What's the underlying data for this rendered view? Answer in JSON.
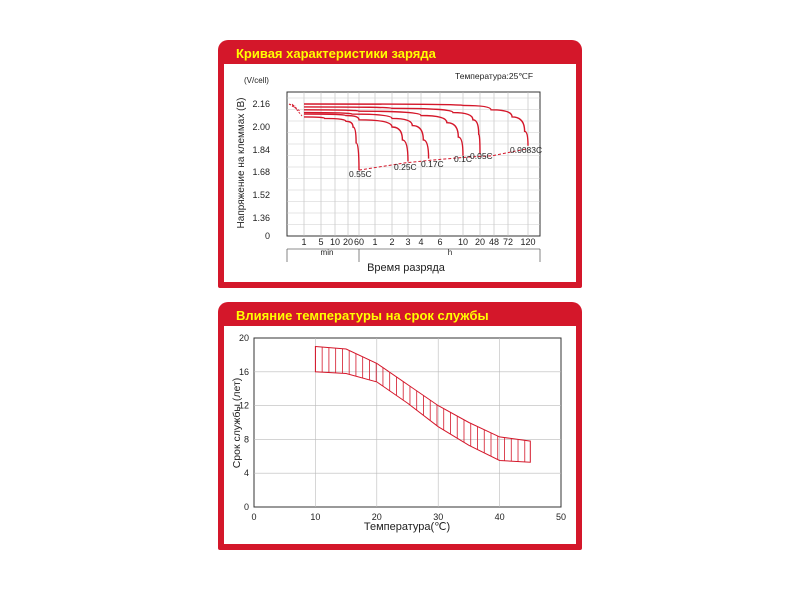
{
  "chart_data": [
    {
      "type": "line",
      "title": "Кривая характеристики заряда",
      "annotation": "Температура:25℃F",
      "ylabel": "Напряжение на клеммах (В)",
      "yunit": "(V/cell)",
      "xlabel": "Время разряда",
      "yticks": [
        "2.16",
        "2.00",
        "1.84",
        "1.68",
        "1.52",
        "1.36",
        "0"
      ],
      "min_ticks": [
        "1",
        "5",
        "10",
        "20",
        "60"
      ],
      "hour_ticks": [
        "1",
        "2",
        "3",
        "4",
        "6",
        "10",
        "20",
        "48",
        "72",
        "120"
      ],
      "min_label": "min",
      "hour_label": "h",
      "cutoff_labels": [
        "0.55C",
        "0.25C",
        "0.17C",
        "0.1C",
        "0.05C",
        "0.0083C"
      ],
      "series": [
        {
          "name": "0.55C",
          "x_hours": [
            0.0167,
            0.1,
            0.3,
            0.55,
            0.75,
            1.0
          ],
          "y": [
            2.07,
            2.06,
            2.04,
            2.0,
            1.89,
            1.7
          ]
        },
        {
          "name": "0.25C",
          "x_hours": [
            0.0167,
            0.3,
            1.0,
            2.0,
            2.6,
            3.0
          ],
          "y": [
            2.09,
            2.08,
            2.05,
            2.0,
            1.91,
            1.76
          ]
        },
        {
          "name": "0.17C",
          "x_hours": [
            0.0167,
            0.5,
            2.0,
            3.3,
            4.2,
            4.7
          ],
          "y": [
            2.1,
            2.09,
            2.06,
            2.01,
            1.91,
            1.78
          ]
        },
        {
          "name": "0.1C",
          "x_hours": [
            0.0167,
            1.0,
            4.0,
            7.0,
            9.0,
            10.0
          ],
          "y": [
            2.12,
            2.11,
            2.08,
            2.03,
            1.93,
            1.8
          ]
        },
        {
          "name": "0.05C",
          "x_hours": [
            0.0167,
            2.0,
            8.0,
            15.0,
            19.0,
            20.0
          ],
          "y": [
            2.14,
            2.13,
            2.1,
            2.05,
            1.95,
            1.81
          ]
        },
        {
          "name": "0.0083C",
          "x_hours": [
            0.0167,
            10.0,
            40.0,
            80.0,
            110.0,
            120.0
          ],
          "y": [
            2.16,
            2.15,
            2.12,
            2.07,
            1.97,
            1.87
          ]
        }
      ],
      "cutoff_line_y": [
        1.7,
        1.75,
        1.77,
        1.79,
        1.8,
        1.85
      ]
    },
    {
      "type": "area",
      "title": "Влияние температуры на срок службы",
      "xlabel": "Температура(℃)",
      "ylabel": "Срок службы (лет)",
      "xlim": [
        0,
        50
      ],
      "ylim": [
        0,
        20
      ],
      "xticks": [
        "0",
        "10",
        "20",
        "30",
        "40",
        "50"
      ],
      "yticks": [
        "0",
        "4",
        "8",
        "12",
        "16",
        "20"
      ],
      "band": {
        "x": [
          10,
          15,
          20,
          25,
          30,
          35,
          40,
          45
        ],
        "upper": [
          19.0,
          18.7,
          17.0,
          14.5,
          12.0,
          10.0,
          8.3,
          7.8
        ],
        "lower": [
          16.0,
          15.8,
          14.8,
          12.3,
          9.5,
          7.3,
          5.5,
          5.3
        ]
      }
    }
  ],
  "colors": {
    "banner": "#d4172a",
    "title_text": "#ffff00",
    "curve": "#d4172a"
  }
}
